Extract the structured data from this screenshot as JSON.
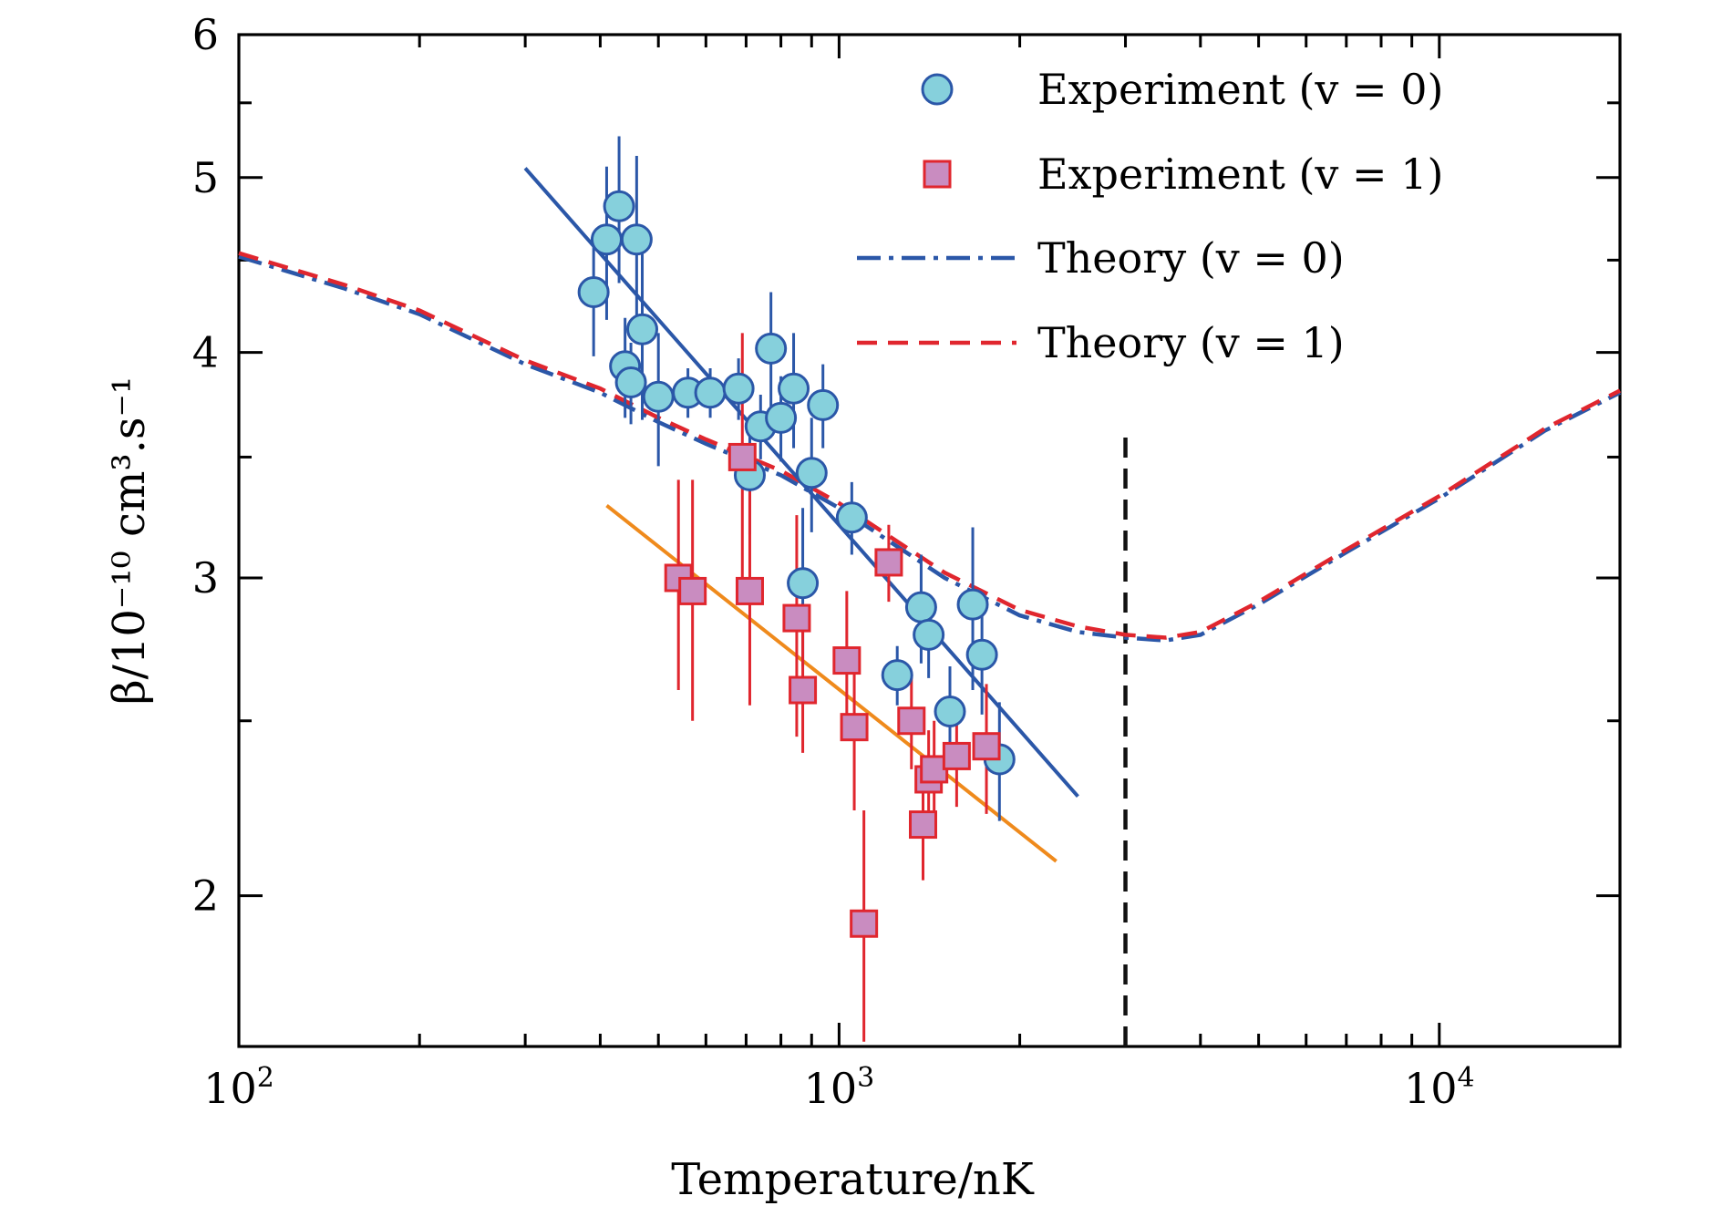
{
  "chart_data": {
    "type": "scatter",
    "title": "",
    "xlabel": "Temperature/nK",
    "ylabel": "β/10⁻¹⁰ cm³.s⁻¹",
    "xscale": "log",
    "yscale": "log",
    "xlim": [
      100,
      20000
    ],
    "ylim": [
      1.65,
      6
    ],
    "grid": false,
    "legend_position": "top-right",
    "x_ticks": [
      {
        "value": 100,
        "base": "10",
        "exp": "2"
      },
      {
        "value": 1000,
        "base": "10",
        "exp": "3"
      },
      {
        "value": 10000,
        "base": "10",
        "exp": "4"
      }
    ],
    "y_ticks": [
      {
        "value": 2,
        "label": "2"
      },
      {
        "value": 3,
        "label": "3"
      },
      {
        "value": 4,
        "label": "4"
      },
      {
        "value": 5,
        "label": "5"
      },
      {
        "value": 6,
        "label": "6"
      }
    ],
    "series": [
      {
        "name": "Experiment (v = 0)",
        "kind": "points",
        "marker": "circle",
        "fill": "#86d0dc",
        "stroke": "#2b57a8",
        "points": [
          {
            "x": 390,
            "y": 4.32,
            "err": 0.34
          },
          {
            "x": 410,
            "y": 4.62,
            "err": 0.45
          },
          {
            "x": 430,
            "y": 4.82,
            "err": 0.45
          },
          {
            "x": 440,
            "y": 3.93,
            "err": 0.25
          },
          {
            "x": 450,
            "y": 3.85,
            "err": 0.2
          },
          {
            "x": 460,
            "y": 4.62,
            "err": 0.52
          },
          {
            "x": 470,
            "y": 4.12,
            "err": 0.45
          },
          {
            "x": 500,
            "y": 3.78,
            "err": 0.32
          },
          {
            "x": 560,
            "y": 3.8,
            "err": 0.12
          },
          {
            "x": 610,
            "y": 3.8,
            "err": 0.12
          },
          {
            "x": 680,
            "y": 3.82,
            "err": 0.15
          },
          {
            "x": 710,
            "y": 3.42,
            "err": 0.25
          },
          {
            "x": 740,
            "y": 3.64,
            "err": 0.15
          },
          {
            "x": 770,
            "y": 4.02,
            "err": 0.3
          },
          {
            "x": 800,
            "y": 3.68,
            "err": 0.2
          },
          {
            "x": 840,
            "y": 3.82,
            "err": 0.28
          },
          {
            "x": 870,
            "y": 2.98,
            "err": 0.3
          },
          {
            "x": 900,
            "y": 3.43,
            "err": 0.25
          },
          {
            "x": 940,
            "y": 3.74,
            "err": 0.2
          },
          {
            "x": 1050,
            "y": 3.24,
            "err": 0.15
          },
          {
            "x": 1250,
            "y": 2.65,
            "err": 0.1
          },
          {
            "x": 1370,
            "y": 2.89,
            "err": 0.2
          },
          {
            "x": 1410,
            "y": 2.79,
            "err": 0.15
          },
          {
            "x": 1530,
            "y": 2.53,
            "err": 0.15
          },
          {
            "x": 1670,
            "y": 2.9,
            "err": 0.3
          },
          {
            "x": 1730,
            "y": 2.72,
            "err": 0.2
          },
          {
            "x": 1850,
            "y": 2.38,
            "err": 0.18
          }
        ]
      },
      {
        "name": "Experiment (v = 1)",
        "kind": "points",
        "marker": "square",
        "fill": "#c98cc0",
        "stroke": "#e0262e",
        "points": [
          {
            "x": 540,
            "y": 3.0,
            "err": 0.4
          },
          {
            "x": 570,
            "y": 2.95,
            "err": 0.45
          },
          {
            "x": 690,
            "y": 3.5,
            "err": 0.6
          },
          {
            "x": 710,
            "y": 2.95,
            "err": 0.4
          },
          {
            "x": 850,
            "y": 2.85,
            "err": 0.4
          },
          {
            "x": 870,
            "y": 2.6,
            "err": 0.2
          },
          {
            "x": 1030,
            "y": 2.7,
            "err": 0.25
          },
          {
            "x": 1060,
            "y": 2.48,
            "err": 0.25
          },
          {
            "x": 1100,
            "y": 1.93,
            "err": 0.3
          },
          {
            "x": 1210,
            "y": 3.06,
            "err": 0.15
          },
          {
            "x": 1320,
            "y": 2.5,
            "err": 0.15
          },
          {
            "x": 1380,
            "y": 2.19,
            "err": 0.15
          },
          {
            "x": 1410,
            "y": 2.32,
            "err": 0.15
          },
          {
            "x": 1440,
            "y": 2.35,
            "err": 0.15
          },
          {
            "x": 1570,
            "y": 2.39,
            "err": 0.15
          },
          {
            "x": 1760,
            "y": 2.42,
            "err": 0.2
          }
        ]
      },
      {
        "name": "Theory (v = 0)",
        "kind": "line",
        "dash": "dashdot",
        "color": "#2b57a8",
        "x": [
          100,
          150,
          200,
          300,
          400,
          500,
          600,
          800,
          1000,
          1500,
          2000,
          2500,
          3000,
          3500,
          4000,
          5000,
          7000,
          10000,
          15000,
          20000
        ],
        "y": [
          4.52,
          4.34,
          4.2,
          3.94,
          3.8,
          3.66,
          3.56,
          3.42,
          3.28,
          3.0,
          2.86,
          2.8,
          2.78,
          2.77,
          2.79,
          2.9,
          3.1,
          3.32,
          3.62,
          3.8
        ]
      },
      {
        "name": "Theory (v = 1)",
        "kind": "line",
        "dash": "dashed",
        "color": "#e0262e",
        "x": [
          100,
          150,
          200,
          300,
          400,
          500,
          600,
          800,
          1000,
          1500,
          2000,
          2500,
          3000,
          3500,
          4000,
          5000,
          7000,
          10000,
          15000,
          20000
        ],
        "y": [
          4.54,
          4.36,
          4.22,
          3.96,
          3.82,
          3.68,
          3.58,
          3.44,
          3.3,
          3.02,
          2.88,
          2.82,
          2.79,
          2.78,
          2.8,
          2.91,
          3.11,
          3.33,
          3.63,
          3.81
        ]
      },
      {
        "kind": "line",
        "dash": "solid",
        "color": "#2b57a8",
        "x": [
          300,
          2500
        ],
        "y": [
          5.06,
          2.27
        ]
      },
      {
        "kind": "line",
        "dash": "solid",
        "color": "#ef8a1c",
        "x": [
          410,
          2300
        ],
        "y": [
          3.29,
          2.09
        ]
      },
      {
        "kind": "vline",
        "dash": "dashed",
        "color": "#111111",
        "x": 3000,
        "y_range": [
          1.65,
          3.6
        ]
      }
    ]
  }
}
